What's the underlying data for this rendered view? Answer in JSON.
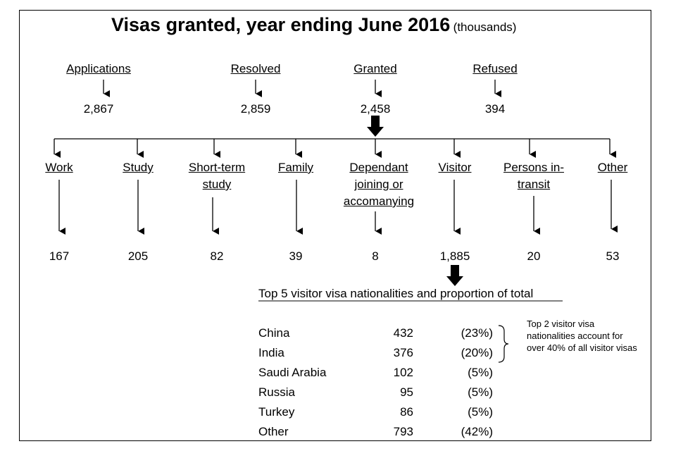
{
  "title": "Visas granted, year ending June 2016",
  "title_units": "(thousands)",
  "summary": [
    {
      "label": "Applications",
      "value": "2,867"
    },
    {
      "label": "Resolved",
      "value": "2,859"
    },
    {
      "label": "Granted",
      "value": "2,458"
    },
    {
      "label": "Refused",
      "value": "394"
    }
  ],
  "categories": [
    {
      "label_lines": [
        "Work"
      ],
      "value": "167"
    },
    {
      "label_lines": [
        "Study"
      ],
      "value": "205"
    },
    {
      "label_lines": [
        "Short-term",
        "study"
      ],
      "value": "82"
    },
    {
      "label_lines": [
        "Family"
      ],
      "value": "39"
    },
    {
      "label_lines": [
        "Dependant",
        "joining or",
        "accomanying"
      ],
      "value": "8"
    },
    {
      "label_lines": [
        "Visitor"
      ],
      "value": "1,885"
    },
    {
      "label_lines": [
        "Persons in-",
        "transit"
      ],
      "value": "20"
    },
    {
      "label_lines": [
        "Other"
      ],
      "value": "53"
    }
  ],
  "nationalities": {
    "heading": "Top 5 visitor visa nationalities and proportion of total",
    "rows": [
      {
        "country": "China",
        "value": "432",
        "share": "(23%)"
      },
      {
        "country": "India",
        "value": "376",
        "share": "(20%)"
      },
      {
        "country": "Saudi Arabia",
        "value": "102",
        "share": "(5%)"
      },
      {
        "country": "Russia",
        "value": "95",
        "share": "(5%)"
      },
      {
        "country": "Turkey",
        "value": "86",
        "share": "(5%)"
      },
      {
        "country": "Other",
        "value": "793",
        "share": "(42%)"
      }
    ],
    "note": "Top 2 visitor visa nationalities account for over 40% of all visitor visas"
  }
}
